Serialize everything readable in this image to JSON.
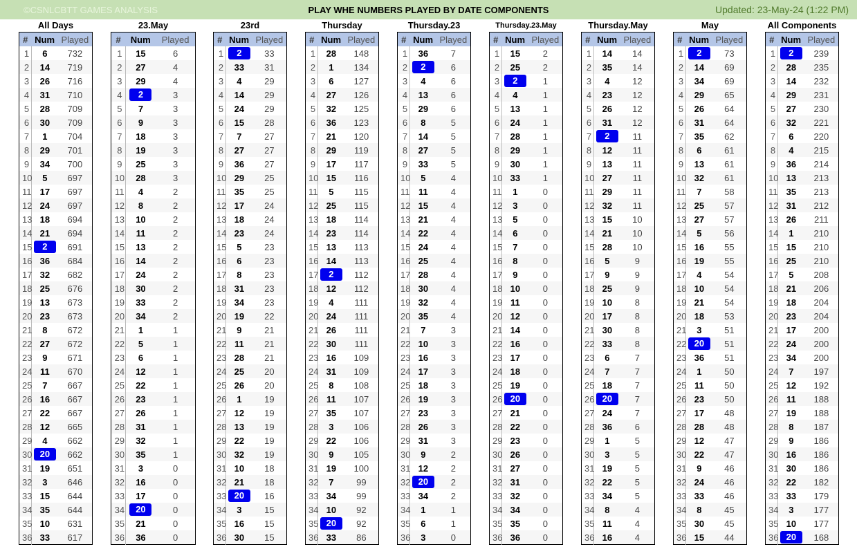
{
  "header": {
    "copyright": "©CSNLCBTT GAMES ANALYSIS",
    "title": "PLAY WHE NUMBERS PLAYED BY DATE COMPONENTS",
    "updated": "Updated: 23-May-24 (1:22 PM)"
  },
  "columns": {
    "rank": "#",
    "num": "Num",
    "played": "Played"
  },
  "highlight": [
    2,
    20
  ],
  "panels": [
    {
      "title": "All Days",
      "rows": [
        [
          6,
          732
        ],
        [
          14,
          719
        ],
        [
          26,
          716
        ],
        [
          31,
          710
        ],
        [
          28,
          709
        ],
        [
          30,
          709
        ],
        [
          1,
          704
        ],
        [
          29,
          701
        ],
        [
          34,
          700
        ],
        [
          5,
          697
        ],
        [
          17,
          697
        ],
        [
          24,
          697
        ],
        [
          18,
          694
        ],
        [
          21,
          694
        ],
        [
          2,
          691
        ],
        [
          36,
          684
        ],
        [
          32,
          682
        ],
        [
          25,
          676
        ],
        [
          13,
          673
        ],
        [
          23,
          673
        ],
        [
          8,
          672
        ],
        [
          27,
          672
        ],
        [
          9,
          671
        ],
        [
          11,
          670
        ],
        [
          7,
          667
        ],
        [
          16,
          667
        ],
        [
          22,
          667
        ],
        [
          12,
          665
        ],
        [
          4,
          662
        ],
        [
          20,
          662
        ],
        [
          19,
          651
        ],
        [
          3,
          646
        ],
        [
          15,
          644
        ],
        [
          35,
          644
        ],
        [
          10,
          631
        ],
        [
          33,
          617
        ]
      ]
    },
    {
      "title": "23.May",
      "rows": [
        [
          15,
          6
        ],
        [
          27,
          4
        ],
        [
          29,
          4
        ],
        [
          2,
          3
        ],
        [
          7,
          3
        ],
        [
          9,
          3
        ],
        [
          18,
          3
        ],
        [
          19,
          3
        ],
        [
          25,
          3
        ],
        [
          28,
          3
        ],
        [
          4,
          2
        ],
        [
          8,
          2
        ],
        [
          10,
          2
        ],
        [
          11,
          2
        ],
        [
          13,
          2
        ],
        [
          14,
          2
        ],
        [
          24,
          2
        ],
        [
          30,
          2
        ],
        [
          33,
          2
        ],
        [
          34,
          2
        ],
        [
          1,
          1
        ],
        [
          5,
          1
        ],
        [
          6,
          1
        ],
        [
          12,
          1
        ],
        [
          22,
          1
        ],
        [
          23,
          1
        ],
        [
          26,
          1
        ],
        [
          31,
          1
        ],
        [
          32,
          1
        ],
        [
          35,
          1
        ],
        [
          3,
          0
        ],
        [
          16,
          0
        ],
        [
          17,
          0
        ],
        [
          20,
          0
        ],
        [
          21,
          0
        ],
        [
          36,
          0
        ]
      ]
    },
    {
      "title": "23rd",
      "rows": [
        [
          2,
          33
        ],
        [
          33,
          31
        ],
        [
          4,
          29
        ],
        [
          14,
          29
        ],
        [
          24,
          29
        ],
        [
          15,
          28
        ],
        [
          7,
          27
        ],
        [
          27,
          27
        ],
        [
          36,
          27
        ],
        [
          29,
          25
        ],
        [
          35,
          25
        ],
        [
          17,
          24
        ],
        [
          18,
          24
        ],
        [
          23,
          24
        ],
        [
          5,
          23
        ],
        [
          6,
          23
        ],
        [
          8,
          23
        ],
        [
          31,
          23
        ],
        [
          34,
          23
        ],
        [
          19,
          22
        ],
        [
          9,
          21
        ],
        [
          11,
          21
        ],
        [
          28,
          21
        ],
        [
          25,
          20
        ],
        [
          26,
          20
        ],
        [
          1,
          19
        ],
        [
          12,
          19
        ],
        [
          13,
          19
        ],
        [
          22,
          19
        ],
        [
          32,
          19
        ],
        [
          10,
          18
        ],
        [
          21,
          18
        ],
        [
          20,
          16
        ],
        [
          3,
          15
        ],
        [
          16,
          15
        ],
        [
          30,
          15
        ]
      ]
    },
    {
      "title": "Thursday",
      "rows": [
        [
          28,
          148
        ],
        [
          1,
          134
        ],
        [
          6,
          127
        ],
        [
          27,
          126
        ],
        [
          32,
          125
        ],
        [
          36,
          123
        ],
        [
          21,
          120
        ],
        [
          29,
          119
        ],
        [
          17,
          117
        ],
        [
          15,
          116
        ],
        [
          5,
          115
        ],
        [
          25,
          115
        ],
        [
          18,
          114
        ],
        [
          23,
          114
        ],
        [
          13,
          113
        ],
        [
          14,
          113
        ],
        [
          2,
          112
        ],
        [
          12,
          112
        ],
        [
          4,
          111
        ],
        [
          24,
          111
        ],
        [
          26,
          111
        ],
        [
          30,
          111
        ],
        [
          16,
          109
        ],
        [
          31,
          109
        ],
        [
          8,
          108
        ],
        [
          11,
          107
        ],
        [
          35,
          107
        ],
        [
          3,
          106
        ],
        [
          22,
          106
        ],
        [
          9,
          105
        ],
        [
          19,
          100
        ],
        [
          7,
          99
        ],
        [
          34,
          99
        ],
        [
          10,
          92
        ],
        [
          20,
          92
        ],
        [
          33,
          86
        ]
      ]
    },
    {
      "title": "Thursday.23",
      "rows": [
        [
          36,
          7
        ],
        [
          2,
          6
        ],
        [
          4,
          6
        ],
        [
          13,
          6
        ],
        [
          29,
          6
        ],
        [
          8,
          5
        ],
        [
          14,
          5
        ],
        [
          27,
          5
        ],
        [
          33,
          5
        ],
        [
          5,
          4
        ],
        [
          11,
          4
        ],
        [
          15,
          4
        ],
        [
          21,
          4
        ],
        [
          22,
          4
        ],
        [
          24,
          4
        ],
        [
          25,
          4
        ],
        [
          28,
          4
        ],
        [
          30,
          4
        ],
        [
          32,
          4
        ],
        [
          35,
          4
        ],
        [
          7,
          3
        ],
        [
          10,
          3
        ],
        [
          16,
          3
        ],
        [
          17,
          3
        ],
        [
          18,
          3
        ],
        [
          19,
          3
        ],
        [
          23,
          3
        ],
        [
          26,
          3
        ],
        [
          31,
          3
        ],
        [
          9,
          2
        ],
        [
          12,
          2
        ],
        [
          20,
          2
        ],
        [
          34,
          2
        ],
        [
          1,
          1
        ],
        [
          6,
          1
        ],
        [
          3,
          0
        ]
      ]
    },
    {
      "title": "Thursday.23.May",
      "small": true,
      "rows": [
        [
          15,
          2
        ],
        [
          25,
          2
        ],
        [
          2,
          1
        ],
        [
          4,
          1
        ],
        [
          13,
          1
        ],
        [
          24,
          1
        ],
        [
          28,
          1
        ],
        [
          29,
          1
        ],
        [
          30,
          1
        ],
        [
          33,
          1
        ],
        [
          1,
          0
        ],
        [
          3,
          0
        ],
        [
          5,
          0
        ],
        [
          6,
          0
        ],
        [
          7,
          0
        ],
        [
          8,
          0
        ],
        [
          9,
          0
        ],
        [
          10,
          0
        ],
        [
          11,
          0
        ],
        [
          12,
          0
        ],
        [
          14,
          0
        ],
        [
          16,
          0
        ],
        [
          17,
          0
        ],
        [
          18,
          0
        ],
        [
          19,
          0
        ],
        [
          20,
          0
        ],
        [
          21,
          0
        ],
        [
          22,
          0
        ],
        [
          23,
          0
        ],
        [
          26,
          0
        ],
        [
          27,
          0
        ],
        [
          31,
          0
        ],
        [
          32,
          0
        ],
        [
          34,
          0
        ],
        [
          35,
          0
        ],
        [
          36,
          0
        ]
      ]
    },
    {
      "title": "Thursday.May",
      "rows": [
        [
          14,
          14
        ],
        [
          35,
          14
        ],
        [
          4,
          12
        ],
        [
          23,
          12
        ],
        [
          26,
          12
        ],
        [
          31,
          12
        ],
        [
          2,
          11
        ],
        [
          12,
          11
        ],
        [
          13,
          11
        ],
        [
          27,
          11
        ],
        [
          29,
          11
        ],
        [
          32,
          11
        ],
        [
          15,
          10
        ],
        [
          21,
          10
        ],
        [
          28,
          10
        ],
        [
          5,
          9
        ],
        [
          9,
          9
        ],
        [
          25,
          9
        ],
        [
          10,
          8
        ],
        [
          17,
          8
        ],
        [
          30,
          8
        ],
        [
          33,
          8
        ],
        [
          6,
          7
        ],
        [
          7,
          7
        ],
        [
          18,
          7
        ],
        [
          20,
          7
        ],
        [
          24,
          7
        ],
        [
          36,
          6
        ],
        [
          1,
          5
        ],
        [
          3,
          5
        ],
        [
          19,
          5
        ],
        [
          22,
          5
        ],
        [
          34,
          5
        ],
        [
          8,
          4
        ],
        [
          11,
          4
        ],
        [
          16,
          4
        ]
      ]
    },
    {
      "title": "May",
      "rows": [
        [
          2,
          73
        ],
        [
          14,
          69
        ],
        [
          34,
          69
        ],
        [
          29,
          65
        ],
        [
          26,
          64
        ],
        [
          31,
          64
        ],
        [
          35,
          62
        ],
        [
          6,
          61
        ],
        [
          13,
          61
        ],
        [
          32,
          61
        ],
        [
          7,
          58
        ],
        [
          25,
          57
        ],
        [
          27,
          57
        ],
        [
          5,
          56
        ],
        [
          16,
          55
        ],
        [
          19,
          55
        ],
        [
          4,
          54
        ],
        [
          10,
          54
        ],
        [
          21,
          54
        ],
        [
          18,
          53
        ],
        [
          3,
          51
        ],
        [
          20,
          51
        ],
        [
          36,
          51
        ],
        [
          1,
          50
        ],
        [
          11,
          50
        ],
        [
          23,
          50
        ],
        [
          17,
          48
        ],
        [
          28,
          48
        ],
        [
          12,
          47
        ],
        [
          22,
          47
        ],
        [
          9,
          46
        ],
        [
          24,
          46
        ],
        [
          33,
          46
        ],
        [
          8,
          45
        ],
        [
          30,
          45
        ],
        [
          15,
          44
        ]
      ]
    },
    {
      "title": "All Components",
      "rows": [
        [
          2,
          239
        ],
        [
          28,
          235
        ],
        [
          14,
          232
        ],
        [
          29,
          231
        ],
        [
          27,
          230
        ],
        [
          32,
          221
        ],
        [
          6,
          220
        ],
        [
          4,
          215
        ],
        [
          36,
          214
        ],
        [
          13,
          213
        ],
        [
          35,
          213
        ],
        [
          31,
          212
        ],
        [
          26,
          211
        ],
        [
          1,
          210
        ],
        [
          15,
          210
        ],
        [
          25,
          210
        ],
        [
          5,
          208
        ],
        [
          21,
          206
        ],
        [
          18,
          204
        ],
        [
          23,
          204
        ],
        [
          17,
          200
        ],
        [
          24,
          200
        ],
        [
          34,
          200
        ],
        [
          7,
          197
        ],
        [
          12,
          192
        ],
        [
          11,
          188
        ],
        [
          19,
          188
        ],
        [
          8,
          187
        ],
        [
          9,
          186
        ],
        [
          16,
          186
        ],
        [
          30,
          186
        ],
        [
          22,
          182
        ],
        [
          33,
          179
        ],
        [
          3,
          177
        ],
        [
          10,
          177
        ],
        [
          20,
          168
        ]
      ]
    }
  ]
}
